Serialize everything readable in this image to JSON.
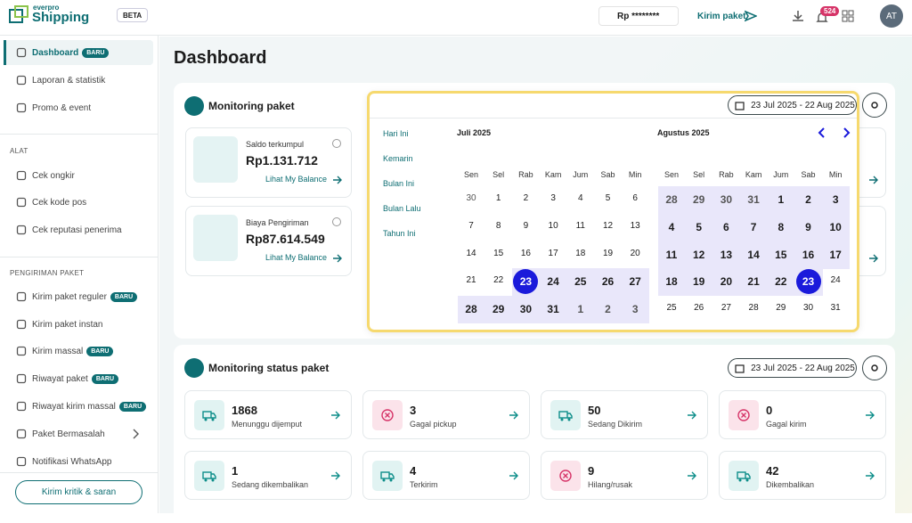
{
  "header": {
    "brand_top": "everpro",
    "brand": "Shipping",
    "badge": "BETA",
    "balance": "Rp ********",
    "send": "Kirim paket",
    "notif_count": "524",
    "avatar": "AT"
  },
  "sidebar": {
    "menu": [
      {
        "label": "Dashboard",
        "badge": "BARU"
      },
      {
        "label": "Laporan & statistik"
      },
      {
        "label": "Promo & event"
      }
    ],
    "sections": [
      {
        "title": "ALAT",
        "items": [
          {
            "label": "Cek ongkir"
          },
          {
            "label": "Cek kode pos"
          },
          {
            "label": "Cek reputasi penerima"
          }
        ]
      },
      {
        "title": "PENGIRIMAN PAKET",
        "items": [
          {
            "label": "Kirim paket reguler",
            "badge": "BARU"
          },
          {
            "label": "Kirim paket instan"
          },
          {
            "label": "Kirim massal",
            "badge": "BARU"
          },
          {
            "label": "Riwayat paket",
            "badge": "BARU"
          },
          {
            "label": "Riwayat kirim massal",
            "badge": "BARU"
          },
          {
            "label": "Paket Bermasalah"
          },
          {
            "label": "Notifikasi WhatsApp"
          }
        ]
      }
    ],
    "feedback": "Kirim kritik & saran"
  },
  "main": {
    "title": "Dashboard",
    "monitoring_paket": {
      "title": "Monitoring paket",
      "date_range": "23 Jul 2025 - 22 Aug 2025",
      "cards": [
        {
          "label": "Saldo terkumpul",
          "amount": "Rp1.131.712",
          "link": "Lihat My Balance"
        },
        {
          "label": "Biaya Pengiriman",
          "amount": "Rp87.614.549",
          "link": "Lihat My Balance"
        }
      ]
    },
    "calendar": {
      "presets": [
        "Hari Ini",
        "Kemarin",
        "Bulan Ini",
        "Bulan Lalu",
        "Tahun Ini"
      ],
      "weekdays": [
        "Sen",
        "Sel",
        "Rab",
        "Kam",
        "Jum",
        "Sab",
        "Min"
      ],
      "months": [
        {
          "title": "Juli 2025",
          "days": [
            30,
            1,
            2,
            3,
            4,
            5,
            6,
            7,
            8,
            9,
            10,
            11,
            12,
            13,
            14,
            15,
            16,
            17,
            18,
            19,
            20,
            21,
            22,
            23,
            24,
            25,
            26,
            27,
            28,
            29,
            30,
            31,
            1,
            2,
            3
          ]
        },
        {
          "title": "Agustus 2025",
          "days": [
            28,
            29,
            30,
            31,
            1,
            2,
            3,
            4,
            5,
            6,
            7,
            8,
            9,
            10,
            11,
            12,
            13,
            14,
            15,
            16,
            17,
            18,
            19,
            20,
            21,
            22,
            23,
            24,
            25,
            26,
            27,
            28,
            29,
            30,
            31
          ]
        }
      ]
    },
    "monitoring_status": {
      "title": "Monitoring status paket",
      "date_range": "23 Jul 2025 - 22 Aug 2025",
      "cards": [
        {
          "value": 1868,
          "label": "Menunggu dijemput"
        },
        {
          "value": 3,
          "label": "Gagal pickup"
        },
        {
          "value": 50,
          "label": "Sedang Dikirim"
        },
        {
          "value": 0,
          "label": "Gagal kirim"
        },
        {
          "value": 1,
          "label": "Sedang dikembalikan"
        },
        {
          "value": 4,
          "label": "Terkirim"
        },
        {
          "value": 9,
          "label": "Hilang/rusak"
        },
        {
          "value": 42,
          "label": "Dikembalikan"
        }
      ]
    }
  }
}
